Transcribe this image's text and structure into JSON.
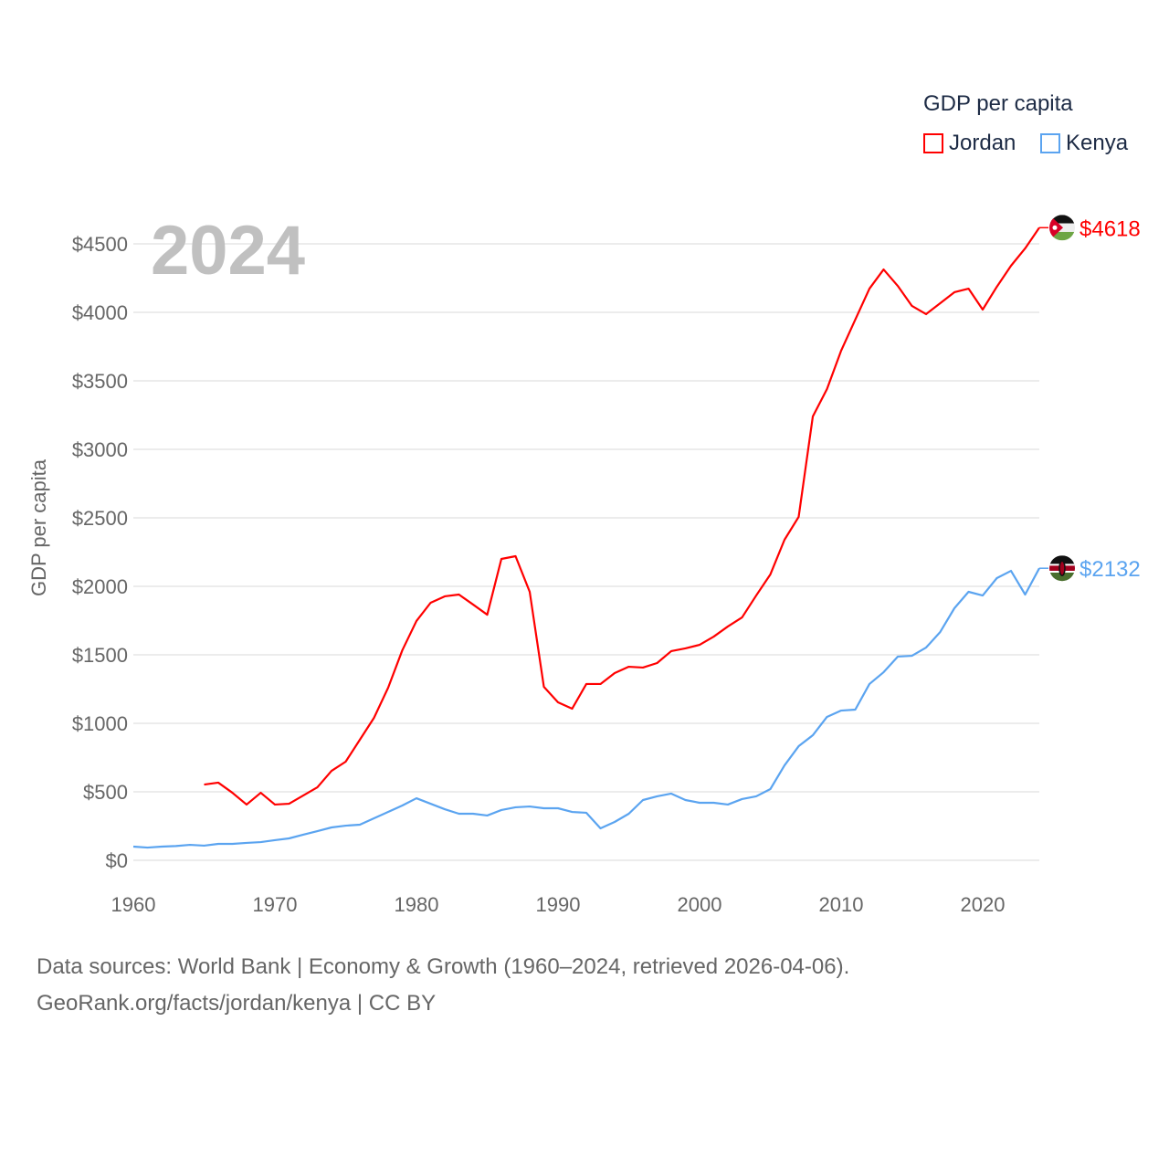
{
  "chart_data": {
    "type": "line",
    "title": "GDP per capita",
    "ylabel": "GDP per capita",
    "xlabel": "",
    "year_label": "2024",
    "xlim": [
      1960,
      2024
    ],
    "ylim": [
      0,
      4700
    ],
    "x_ticks": [
      1960,
      1970,
      1980,
      1990,
      2000,
      2010,
      2020
    ],
    "y_ticks": [
      0,
      500,
      1000,
      1500,
      2000,
      2500,
      3000,
      3500,
      4000,
      4500
    ],
    "y_tick_labels": [
      "$0",
      "$500",
      "$1000",
      "$1500",
      "$2000",
      "$2500",
      "$3000",
      "$3500",
      "$4000",
      "$4500"
    ],
    "grid": true,
    "legend_placement": "top-right",
    "series": [
      {
        "name": "Jordan",
        "color": "#ff0000",
        "end_label": "$4618",
        "start_year": 1965,
        "values": [
          553,
          567,
          493,
          407,
          493,
          407,
          413,
          473,
          533,
          653,
          720,
          880,
          1040,
          1260,
          1533,
          1747,
          1880,
          1927,
          1940,
          1867,
          1793,
          2200,
          2220,
          1960,
          1267,
          1153,
          1107,
          1287,
          1287,
          1367,
          1413,
          1407,
          1440,
          1527,
          1547,
          1573,
          1633,
          1707,
          1773,
          1933,
          2087,
          2340,
          2507,
          3240,
          3440,
          3720,
          3947,
          4173,
          4313,
          4193,
          4047,
          3987,
          4067,
          4147,
          4173,
          4020,
          4187,
          4340,
          4467,
          4618
        ]
      },
      {
        "name": "Kenya",
        "color": "#5ba4f0",
        "end_label": "$2132",
        "start_year": 1960,
        "values": [
          100,
          93,
          100,
          104,
          113,
          107,
          120,
          120,
          127,
          133,
          147,
          160,
          187,
          213,
          240,
          253,
          260,
          307,
          353,
          400,
          453,
          413,
          373,
          340,
          340,
          327,
          367,
          387,
          393,
          380,
          380,
          353,
          347,
          233,
          280,
          340,
          440,
          467,
          487,
          440,
          420,
          420,
          407,
          447,
          467,
          520,
          693,
          833,
          913,
          1047,
          1093,
          1100,
          1287,
          1373,
          1487,
          1493,
          1553,
          1667,
          1840,
          1960,
          1933,
          2060,
          2113,
          1940,
          2132
        ]
      }
    ]
  },
  "footer": {
    "line1": "Data sources: World Bank | Economy & Growth (1960–2024, retrieved 2026-04-06).",
    "line2": "GeoRank.org/facts/jordan/kenya | CC BY"
  }
}
